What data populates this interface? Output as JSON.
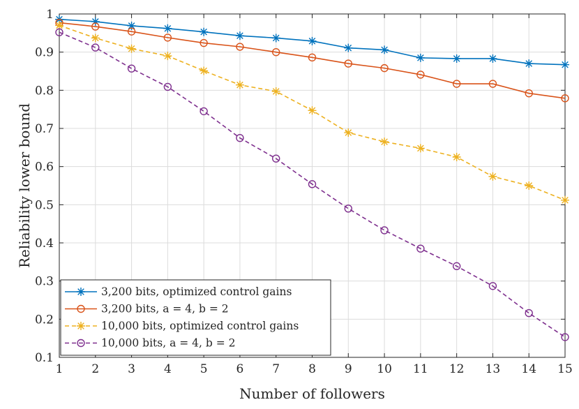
{
  "chart_data": {
    "type": "line",
    "title": "",
    "xlabel": "Number of followers",
    "ylabel": "Reliability lower bound",
    "xlim": [
      1,
      15
    ],
    "ylim": [
      0.1,
      1
    ],
    "grid": true,
    "x": [
      1,
      2,
      3,
      4,
      5,
      6,
      7,
      8,
      9,
      10,
      11,
      12,
      13,
      14,
      15
    ],
    "xticks": [
      "1",
      "2",
      "3",
      "4",
      "5",
      "6",
      "7",
      "8",
      "9",
      "10",
      "11",
      "12",
      "13",
      "14",
      "15"
    ],
    "yticks": [
      "0.1",
      "0.2",
      "0.3",
      "0.4",
      "0.5",
      "0.6",
      "0.7",
      "0.8",
      "0.9",
      "1"
    ],
    "legend_position": "bottom-left",
    "series": [
      {
        "name": "3,200 bits, optimized control gains",
        "color": "#0072BD",
        "line_style": "solid",
        "marker": "star",
        "values": [
          0.986,
          0.98,
          0.969,
          0.962,
          0.953,
          0.943,
          0.937,
          0.929,
          0.911,
          0.906,
          0.885,
          0.883,
          0.883,
          0.87,
          0.867
        ]
      },
      {
        "name": "3,200 bits, a = 4, b = 2",
        "color": "#D95319",
        "line_style": "solid",
        "marker": "circle",
        "values": [
          0.977,
          0.967,
          0.954,
          0.938,
          0.924,
          0.914,
          0.9,
          0.886,
          0.87,
          0.858,
          0.841,
          0.817,
          0.817,
          0.792,
          0.779
        ]
      },
      {
        "name": "10,000 bits, optimized control gains",
        "color": "#EDB120",
        "line_style": "dashed",
        "marker": "star",
        "values": [
          0.97,
          0.937,
          0.909,
          0.89,
          0.851,
          0.814,
          0.797,
          0.747,
          0.689,
          0.665,
          0.648,
          0.625,
          0.574,
          0.55,
          0.512
        ]
      },
      {
        "name": "10,000 bits, a = 4, b = 2",
        "color": "#7E2F8E",
        "line_style": "dashed",
        "marker": "circle",
        "values": [
          0.952,
          0.912,
          0.857,
          0.809,
          0.745,
          0.675,
          0.621,
          0.554,
          0.49,
          0.433,
          0.385,
          0.339,
          0.287,
          0.216,
          0.153
        ]
      }
    ]
  }
}
